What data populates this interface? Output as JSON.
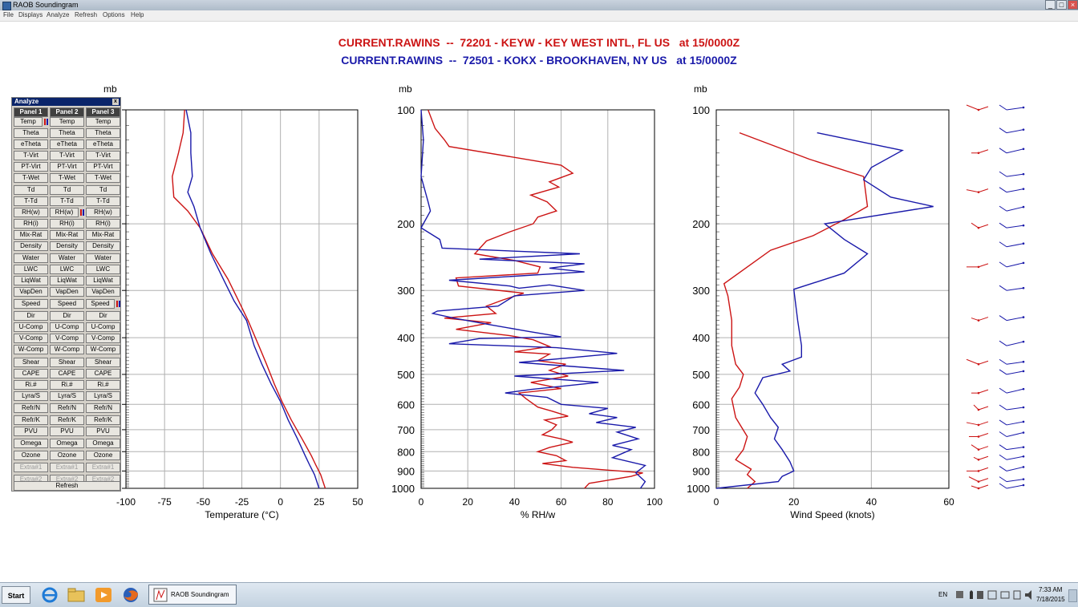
{
  "window": {
    "title": "RAOB Soundingram",
    "controls": [
      "_",
      "□",
      "×"
    ]
  },
  "menu": [
    "File",
    "Displays",
    "Analyze",
    "Refresh",
    "Options",
    "Help"
  ],
  "header": {
    "line1": "CURRENT.RAWINS  --  72201 - KEYW - KEY WEST INTL, FL US   at 15/0000Z",
    "line2": "CURRENT.RAWINS  --  72501 - KOKX - BROOKHAVEN, NY US   at 15/0000Z",
    "colors": {
      "station1": "#cc1414",
      "station2": "#1a1aaa"
    }
  },
  "analyze": {
    "title": "Analyze",
    "close": "x",
    "columns": [
      "Panel 1",
      "Panel 2",
      "Panel 3"
    ],
    "rows": [
      "Temp",
      "Theta",
      "eTheta",
      "T-Virt",
      "PT-Virt",
      "T-Wet",
      "Td",
      "T-Td",
      "RH(w)",
      "RH(i)",
      "Mix-Rat",
      "Density",
      "Water",
      "LWC",
      "LiqWat",
      "VapDen",
      "Speed",
      "Dir",
      "U-Comp",
      "V-Comp",
      "W-Comp",
      "Shear",
      "CAPE",
      "Ri.#",
      "Lyra/S",
      "Refr/N",
      "Refr/K",
      "PVU",
      "Omega",
      "Ozone",
      "Extra#1",
      "Extra#2"
    ],
    "disabled_rows": [
      "Extra#1",
      "Extra#2"
    ],
    "active": {
      "Panel 1": "Temp",
      "Panel 2": "RH(w)",
      "Panel 3": "Speed"
    },
    "refresh": "Refresh"
  },
  "pressure_unit": "mb",
  "chart_data": [
    {
      "type": "line",
      "title": "",
      "xlabel": "Temperature (°C)",
      "ylabel": "mb",
      "xlim": [
        -100,
        50
      ],
      "xticks": [
        -100,
        -75,
        -50,
        -25,
        0,
        25,
        50
      ],
      "xtick_labels": [
        "-100",
        "-75",
        "-50",
        "-25",
        "0",
        "25",
        "50"
      ],
      "ylim": [
        1000,
        100
      ],
      "yticks": [
        100,
        200,
        300,
        400,
        500,
        600,
        700,
        800,
        900,
        1000
      ],
      "yaxis": "log-pressure",
      "grid": true,
      "series": [
        {
          "color": "#cc1414",
          "points": [
            [
              -62,
              100
            ],
            [
              -63,
              115
            ],
            [
              -66,
              130
            ],
            [
              -70,
              150
            ],
            [
              -69,
              170
            ],
            [
              -60,
              185
            ],
            [
              -52,
              205
            ],
            [
              -44,
              240
            ],
            [
              -34,
              280
            ],
            [
              -27,
              320
            ],
            [
              -21,
              360
            ],
            [
              -14,
              420
            ],
            [
              -9,
              470
            ],
            [
              -4,
              530
            ],
            [
              1,
              590
            ],
            [
              7,
              660
            ],
            [
              14,
              740
            ],
            [
              20,
              820
            ],
            [
              23,
              870
            ],
            [
              26,
              920
            ],
            [
              29,
              1000
            ]
          ]
        },
        {
          "color": "#1a1aaa",
          "points": [
            [
              -61,
              100
            ],
            [
              -58,
              115
            ],
            [
              -58,
              130
            ],
            [
              -57,
              150
            ],
            [
              -60,
              165
            ],
            [
              -56,
              180
            ],
            [
              -52,
              205
            ],
            [
              -45,
              240
            ],
            [
              -37,
              280
            ],
            [
              -30,
              320
            ],
            [
              -22,
              360
            ],
            [
              -17,
              420
            ],
            [
              -12,
              470
            ],
            [
              -6,
              530
            ],
            [
              0,
              590
            ],
            [
              5,
              660
            ],
            [
              11,
              740
            ],
            [
              16,
              820
            ],
            [
              19,
              870
            ],
            [
              22,
              920
            ],
            [
              25,
              1000
            ]
          ]
        }
      ]
    },
    {
      "type": "line",
      "title": "",
      "xlabel": "% RH/w",
      "ylabel": "mb",
      "xlim": [
        0,
        100
      ],
      "xticks": [
        0,
        20,
        40,
        60,
        80,
        100
      ],
      "xtick_labels": [
        "0",
        "20",
        "40",
        "60",
        "80",
        "100"
      ],
      "ylim": [
        1000,
        100
      ],
      "yticks": [
        100,
        200,
        300,
        400,
        500,
        600,
        700,
        800,
        900,
        1000
      ],
      "ytick_labels": [
        "100",
        "200",
        "300",
        "400",
        "500",
        "600",
        "700",
        "800",
        "900",
        "1000"
      ],
      "yaxis": "log-pressure",
      "grid": true,
      "series": [
        {
          "color": "#cc1414",
          "points": [
            [
              3,
              100
            ],
            [
              6,
              112
            ],
            [
              10,
              120
            ],
            [
              12,
              125
            ],
            [
              60,
              140
            ],
            [
              65,
              147
            ],
            [
              55,
              155
            ],
            [
              59,
              160
            ],
            [
              47,
              168
            ],
            [
              54,
              175
            ],
            [
              58,
              185
            ],
            [
              50,
              192
            ],
            [
              48,
              200
            ],
            [
              38,
              210
            ],
            [
              28,
              222
            ],
            [
              23,
              240
            ],
            [
              40,
              250
            ],
            [
              51,
              260
            ],
            [
              50,
              270
            ],
            [
              15,
              278
            ],
            [
              16,
              292
            ],
            [
              44,
              305
            ],
            [
              35,
              318
            ],
            [
              28,
              330
            ],
            [
              32,
              345
            ],
            [
              10,
              355
            ],
            [
              30,
              365
            ],
            [
              15,
              380
            ],
            [
              38,
              395
            ],
            [
              48,
              405
            ],
            [
              55,
              422
            ],
            [
              40,
              436
            ],
            [
              55,
              442
            ],
            [
              50,
              460
            ],
            [
              62,
              470
            ],
            [
              55,
              488
            ],
            [
              63,
              505
            ],
            [
              47,
              525
            ],
            [
              60,
              545
            ],
            [
              42,
              560
            ],
            [
              45,
              580
            ],
            [
              50,
              610
            ],
            [
              56,
              625
            ],
            [
              63,
              645
            ],
            [
              53,
              660
            ],
            [
              58,
              680
            ],
            [
              56,
              700
            ],
            [
              52,
              722
            ],
            [
              60,
              740
            ],
            [
              65,
              755
            ],
            [
              55,
              780
            ],
            [
              50,
              800
            ],
            [
              58,
              820
            ],
            [
              62,
              845
            ],
            [
              52,
              860
            ],
            [
              65,
              880
            ],
            [
              95,
              910
            ],
            [
              90,
              930
            ],
            [
              72,
              970
            ],
            [
              70,
              1000
            ]
          ]
        },
        {
          "color": "#1a1aaa",
          "points": [
            [
              0,
              100
            ],
            [
              1,
              120
            ],
            [
              0,
              150
            ],
            [
              3,
              175
            ],
            [
              4,
              185
            ],
            [
              0,
              205
            ],
            [
              8,
              220
            ],
            [
              9,
              232
            ],
            [
              68,
              240
            ],
            [
              25,
              248
            ],
            [
              70,
              255
            ],
            [
              55,
              262
            ],
            [
              70,
              268
            ],
            [
              12,
              282
            ],
            [
              38,
              292
            ],
            [
              42,
              296
            ],
            [
              55,
              290
            ],
            [
              70,
              300
            ],
            [
              40,
              310
            ],
            [
              33,
              330
            ],
            [
              7,
              340
            ],
            [
              5,
              345
            ],
            [
              14,
              355
            ],
            [
              30,
              370
            ],
            [
              46,
              385
            ],
            [
              60,
              398
            ],
            [
              25,
              402
            ],
            [
              12,
              415
            ],
            [
              58,
              425
            ],
            [
              84,
              440
            ],
            [
              42,
              465
            ],
            [
              87,
              488
            ],
            [
              40,
              505
            ],
            [
              76,
              525
            ],
            [
              47,
              548
            ],
            [
              36,
              560
            ],
            [
              54,
              575
            ],
            [
              60,
              600
            ],
            [
              80,
              615
            ],
            [
              72,
              635
            ],
            [
              84,
              650
            ],
            [
              75,
              670
            ],
            [
              92,
              690
            ],
            [
              84,
              710
            ],
            [
              93,
              740
            ],
            [
              82,
              770
            ],
            [
              90,
              790
            ],
            [
              82,
              830
            ],
            [
              96,
              870
            ],
            [
              92,
              910
            ],
            [
              96,
              960
            ],
            [
              94,
              1000
            ]
          ]
        }
      ]
    },
    {
      "type": "line",
      "title": "",
      "xlabel": "Wind Speed (knots)",
      "ylabel": "mb",
      "xlim": [
        0,
        60
      ],
      "xticks": [
        0,
        20,
        40,
        60
      ],
      "xtick_labels": [
        "0",
        "20",
        "40",
        "60"
      ],
      "ylim": [
        1000,
        100
      ],
      "yticks": [
        100,
        200,
        300,
        400,
        500,
        600,
        700,
        800,
        900,
        1000
      ],
      "ytick_labels": [
        "100",
        "200",
        "300",
        "400",
        "500",
        "600",
        "700",
        "800",
        "900",
        "1000"
      ],
      "yaxis": "log-pressure",
      "grid": true,
      "series": [
        {
          "color": "#cc1414",
          "points": [
            [
              6,
              115
            ],
            [
              24,
              135
            ],
            [
              38,
              150
            ],
            [
              39,
              180
            ],
            [
              33,
              195
            ],
            [
              25,
              215
            ],
            [
              14,
              235
            ],
            [
              8,
              260
            ],
            [
              2,
              288
            ],
            [
              3,
              310
            ],
            [
              4,
              360
            ],
            [
              4,
              420
            ],
            [
              5,
              470
            ],
            [
              7,
              500
            ],
            [
              6,
              540
            ],
            [
              4,
              580
            ],
            [
              5,
              650
            ],
            [
              8,
              730
            ],
            [
              7,
              790
            ],
            [
              5,
              840
            ],
            [
              9,
              890
            ],
            [
              8,
              920
            ],
            [
              10,
              960
            ],
            [
              8,
              1000
            ]
          ]
        },
        {
          "color": "#1a1aaa",
          "points": [
            [
              26,
              115
            ],
            [
              48,
              128
            ],
            [
              40,
              142
            ],
            [
              38,
              153
            ],
            [
              45,
              170
            ],
            [
              56,
              180
            ],
            [
              28,
              200
            ],
            [
              33,
              220
            ],
            [
              39,
              240
            ],
            [
              33,
              270
            ],
            [
              20,
              298
            ],
            [
              21,
              360
            ],
            [
              22,
              420
            ],
            [
              22,
              450
            ],
            [
              17,
              470
            ],
            [
              19,
              490
            ],
            [
              12,
              510
            ],
            [
              10,
              560
            ],
            [
              12,
              600
            ],
            [
              14,
              650
            ],
            [
              16,
              690
            ],
            [
              15,
              740
            ],
            [
              17,
              790
            ],
            [
              19,
              850
            ],
            [
              20,
              900
            ],
            [
              17,
              930
            ],
            [
              16,
              960
            ],
            [
              0,
              1000
            ]
          ]
        }
      ]
    }
  ],
  "taskbar": {
    "start": "Start",
    "task_label": "RAOB Soundingram",
    "lang": "EN",
    "time": "7:33 AM",
    "date": "7/18/2015"
  }
}
